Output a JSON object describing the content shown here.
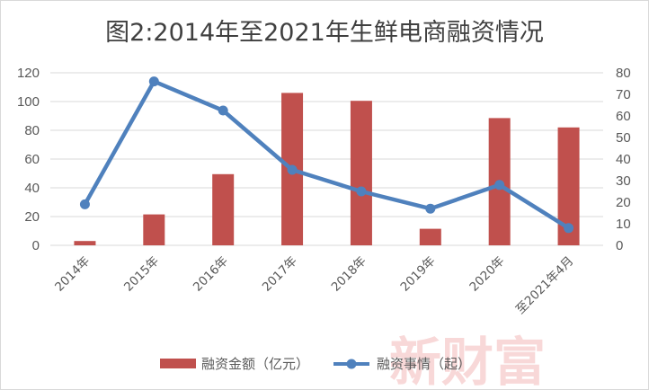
{
  "watermark": "新财富",
  "chart_data": {
    "type": "bar",
    "title": "图2:2014年至2021年生鲜电商融资情况",
    "categories": [
      "2014年",
      "2015年",
      "2016年",
      "2017年",
      "2018年",
      "2019年",
      "2020年",
      "至2021年4月"
    ],
    "y_left": {
      "ylim": [
        0,
        120
      ],
      "ticks": [
        "0",
        "20",
        "40",
        "60",
        "80",
        "100",
        "120"
      ]
    },
    "y_right": {
      "ylim": [
        0,
        80
      ],
      "ticks": [
        "0",
        "10",
        "20",
        "30",
        "40",
        "50",
        "60",
        "70",
        "80"
      ]
    },
    "grid": true,
    "legend": "bottom",
    "series": [
      {
        "name": "融资金额（亿元）",
        "type": "bar",
        "axis": "left",
        "color": "#c0504d",
        "values": [
          3,
          21.5,
          49.5,
          106,
          100.5,
          11.5,
          88.5,
          82
        ]
      },
      {
        "name": "融资事情（起）",
        "type": "line",
        "axis": "right",
        "color": "#4f81bd",
        "values": [
          19,
          76,
          62.5,
          35,
          25,
          17,
          28,
          8
        ]
      }
    ]
  }
}
